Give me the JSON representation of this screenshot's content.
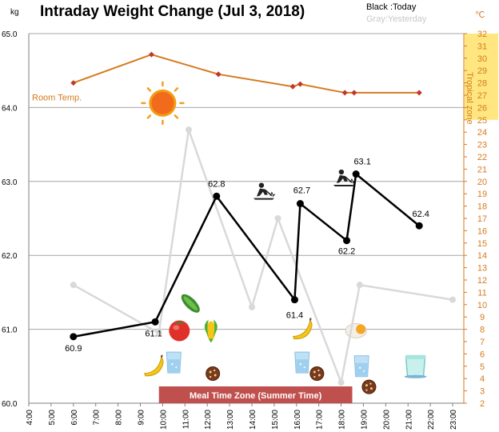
{
  "chart_data": {
    "type": "line",
    "title": "Intraday Weight Change (Jul 3, 2018)",
    "y_unit": "kg",
    "y2_unit": "℃",
    "ylim": [
      60.0,
      65.0
    ],
    "y_ticks": [
      "65.0",
      "64.0",
      "63.0",
      "62.0",
      "61.0",
      "60.0"
    ],
    "y2lim": [
      2,
      32
    ],
    "x_ticks": [
      "4:00",
      "5:00",
      "6:00",
      "7:00",
      "8:00",
      "9:00",
      "10:00",
      "11:00",
      "12:00",
      "13:00",
      "14:00",
      "15:00",
      "16:00",
      "17:00",
      "18:00",
      "19:00",
      "20:00",
      "21:00",
      "22:00",
      "23:00"
    ],
    "legend": {
      "today": "Black :Today",
      "yesterday": "Gray:Yesterday"
    },
    "tropical_zone_label": "Tropical zone",
    "tropical_zone_range": [
      25,
      32
    ],
    "room_temp_label": "Room Temp.",
    "meal_zone_label": "Meal Time Zone  (Summer Time)",
    "meal_zone_range": [
      "9:50",
      "18:30"
    ],
    "colors": {
      "today": "#000000",
      "yesterday": "#d9d9d9",
      "room_temp": "#d57a1e",
      "meal_zone": "#c0504d",
      "tropical_zone": "#ffe680"
    },
    "series": [
      {
        "name": "Today",
        "x": [
          "6:00",
          "9:40",
          "12:25",
          "15:55",
          "16:10",
          "18:15",
          "18:40",
          "21:30"
        ],
        "y": [
          60.9,
          61.1,
          62.8,
          61.4,
          62.7,
          62.2,
          63.1,
          62.4
        ],
        "labels": [
          "60.9",
          "61.1",
          "62.8",
          "61.4",
          "62.7",
          "62.2",
          "63.1",
          "62.4"
        ]
      },
      {
        "name": "Yesterday",
        "x": [
          "6:00",
          "9:50",
          "11:10",
          "14:00",
          "15:10",
          "18:00",
          "18:50",
          "23:00"
        ],
        "y": [
          61.6,
          60.95,
          63.7,
          61.3,
          62.5,
          60.28,
          61.6,
          61.4
        ]
      },
      {
        "name": "Room Temp.",
        "axis": "right",
        "x": [
          "6:00",
          "9:30",
          "12:30",
          "15:50",
          "16:10",
          "18:10",
          "18:35",
          "21:30"
        ],
        "y": [
          28.0,
          30.3,
          28.7,
          27.7,
          27.9,
          27.2,
          27.2,
          27.2
        ]
      }
    ],
    "icons": [
      {
        "name": "sun-icon",
        "t": "10:00",
        "v": 64.06
      },
      {
        "name": "gardening-icon",
        "t": "14:30",
        "v": 62.85
      },
      {
        "name": "gardening-icon",
        "t": "18:05",
        "v": 63.03
      },
      {
        "name": "cucumber-icon",
        "t": "11:15",
        "v": 61.35
      },
      {
        "name": "tomato-icon",
        "t": "10:45",
        "v": 60.98
      },
      {
        "name": "corn-icon",
        "t": "12:10",
        "v": 60.98
      },
      {
        "name": "banana-icon",
        "t": "9:35",
        "v": 60.5
      },
      {
        "name": "water-glass-icon",
        "t": "10:30",
        "v": 60.55
      },
      {
        "name": "cookie-icon",
        "t": "12:15",
        "v": 60.4
      },
      {
        "name": "banana-icon",
        "t": "16:15",
        "v": 61.0
      },
      {
        "name": "water-glass-icon",
        "t": "16:15",
        "v": 60.55
      },
      {
        "name": "cookie-icon",
        "t": "16:55",
        "v": 60.4
      },
      {
        "name": "egg-icon",
        "t": "18:40",
        "v": 60.98
      },
      {
        "name": "water-glass-icon",
        "t": "18:55",
        "v": 60.5
      },
      {
        "name": "cookie-icon",
        "t": "19:15",
        "v": 60.22
      },
      {
        "name": "cup-icon",
        "t": "21:20",
        "v": 60.5
      }
    ]
  }
}
